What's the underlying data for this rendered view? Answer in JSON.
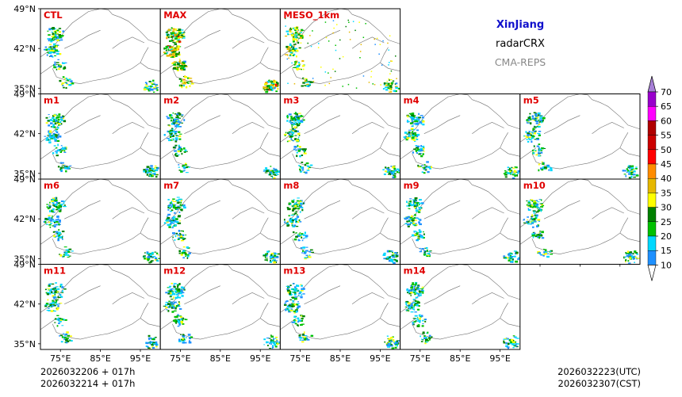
{
  "chart_data": {
    "type": "heatmap",
    "region": "XinJiang",
    "product": "radarCRX",
    "system": "CMA-REPS",
    "panels": [
      "CTL",
      "MAX",
      "MESO_1km",
      "m1",
      "m2",
      "m3",
      "m4",
      "m5",
      "m6",
      "m7",
      "m8",
      "m9",
      "m10",
      "m11",
      "m12",
      "m13",
      "m14"
    ],
    "rows": [
      [
        "CTL",
        "MAX",
        "MESO_1km"
      ],
      [
        "m1",
        "m2",
        "m3",
        "m4",
        "m5"
      ],
      [
        "m6",
        "m7",
        "m8",
        "m9",
        "m10"
      ],
      [
        "m11",
        "m12",
        "m13",
        "m14"
      ]
    ],
    "y_ticks": [
      "49°N",
      "42°N",
      "35°N"
    ],
    "y_tick_values": [
      49,
      42,
      35
    ],
    "x_ticks": [
      "75°E",
      "85°E",
      "95°E"
    ],
    "x_tick_values": [
      75,
      85,
      95
    ],
    "lon_range": [
      70,
      100
    ],
    "lat_range": [
      34,
      49
    ],
    "colorbar": {
      "levels": [
        10,
        15,
        20,
        25,
        30,
        35,
        40,
        45,
        50,
        55,
        60,
        65,
        70
      ],
      "labels": [
        "10",
        "15",
        "20",
        "25",
        "30",
        "35",
        "40",
        "45",
        "50",
        "55",
        "60",
        "65",
        "70"
      ],
      "colors": [
        "#1e90ff",
        "#00d8ff",
        "#00c000",
        "#008000",
        "#ffff00",
        "#e6b800",
        "#ff8c00",
        "#ff0000",
        "#cc0000",
        "#b00000",
        "#ff00ff",
        "#9900cc",
        "#a67fd6"
      ],
      "extend_under_color": "#ffffff"
    },
    "init_line1": "2026032206  +  017h",
    "init_line2": "2026032214  +  017h",
    "valid_utc": "2026032223(UTC)",
    "valid_cst": "2026032307(CST)"
  },
  "colors": {
    "title": "#1010cc",
    "product": "#000000",
    "system": "#888888",
    "panel_label": "#e00000",
    "border": "#707070",
    "frame": "#000000"
  }
}
